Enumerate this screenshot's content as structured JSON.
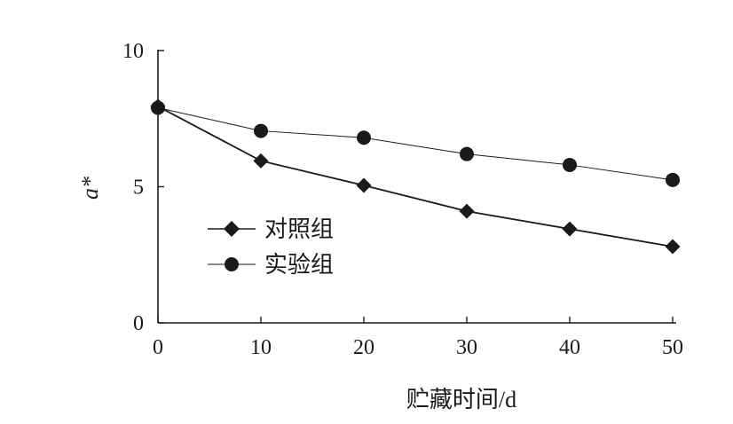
{
  "chart_data": {
    "type": "line",
    "xlabel": "贮藏时间/d",
    "ylabel": "a*",
    "x": [
      0,
      10,
      20,
      30,
      40,
      50
    ],
    "xlim": [
      0,
      50
    ],
    "ylim": [
      0,
      10
    ],
    "xticks": [
      "0",
      "10",
      "20",
      "30",
      "40",
      "50"
    ],
    "yticks": [
      "0",
      "5",
      "10"
    ],
    "grid": false,
    "legend_position": "center-left",
    "series": [
      {
        "name": "对照组",
        "marker": "diamond",
        "values": [
          7.95,
          5.95,
          5.05,
          4.1,
          3.45,
          2.8
        ]
      },
      {
        "name": "实验组",
        "marker": "circle",
        "values": [
          7.9,
          7.05,
          6.8,
          6.2,
          5.8,
          5.25
        ]
      }
    ]
  }
}
